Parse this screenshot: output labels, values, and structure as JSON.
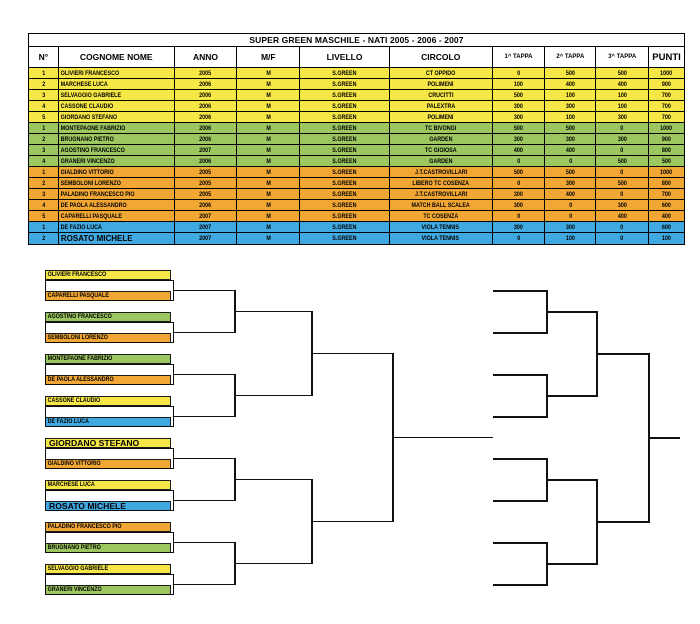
{
  "colors": {
    "yellow": "#F6E646",
    "green": "#9CC65F",
    "orange": "#F2A735",
    "blue": "#41A9E1"
  },
  "table": {
    "title": "SUPER GREEN MASCHILE - NATI 2005 - 2006 - 2007",
    "columns": [
      "N°",
      "COGNOME NOME",
      "ANNO",
      "M/F",
      "LIVELLO",
      "CIRCOLO",
      "1^ TAPPA",
      "2^ TAPPA",
      "3^ TAPPA",
      "PUNTI"
    ],
    "rows": [
      {
        "n": "1",
        "name": "OLIVIERI FRANCESCO",
        "anno": "2005",
        "mf": "M",
        "livello": "S.GREEN",
        "circolo": "CT OPPIDO",
        "t1": "0",
        "t2": "500",
        "t3": "500",
        "punti": "1000",
        "group": "yellow",
        "large": false
      },
      {
        "n": "2",
        "name": "MARCHESE LUCA",
        "anno": "2006",
        "mf": "M",
        "livello": "S.GREEN",
        "circolo": "POLIMENI",
        "t1": "100",
        "t2": "400",
        "t3": "400",
        "punti": "900",
        "group": "yellow",
        "large": false
      },
      {
        "n": "3",
        "name": "SELVAGGIO GABRIELE",
        "anno": "2006",
        "mf": "M",
        "livello": "S.GREEN",
        "circolo": "CRUCITTI",
        "t1": "500",
        "t2": "100",
        "t3": "100",
        "punti": "700",
        "group": "yellow",
        "large": false
      },
      {
        "n": "4",
        "name": "CASSONE CLAUDIO",
        "anno": "2006",
        "mf": "M",
        "livello": "S.GREEN",
        "circolo": "PALEXTRA",
        "t1": "300",
        "t2": "300",
        "t3": "100",
        "punti": "700",
        "group": "yellow",
        "large": false
      },
      {
        "n": "5",
        "name": "GIORDANO STEFANO",
        "anno": "2006",
        "mf": "M",
        "livello": "S.GREEN",
        "circolo": "POLIMENI",
        "t1": "300",
        "t2": "100",
        "t3": "300",
        "punti": "700",
        "group": "yellow",
        "large": false
      },
      {
        "n": "1",
        "name": "MONTEPAONE FABRIZIO",
        "anno": "2006",
        "mf": "M",
        "livello": "S.GREEN",
        "circolo": "TC BIVONGI",
        "t1": "500",
        "t2": "500",
        "t3": "0",
        "punti": "1000",
        "group": "green",
        "large": false
      },
      {
        "n": "2",
        "name": "BRUGNANO PIETRO",
        "anno": "2006",
        "mf": "M",
        "livello": "S.GREEN",
        "circolo": "GARDEN",
        "t1": "300",
        "t2": "300",
        "t3": "300",
        "punti": "900",
        "group": "green",
        "large": false
      },
      {
        "n": "3",
        "name": "AGOSTINO FRANCESCO",
        "anno": "2007",
        "mf": "M",
        "livello": "S.GREEN",
        "circolo": "TC GIOIOSA",
        "t1": "400",
        "t2": "400",
        "t3": "0",
        "punti": "800",
        "group": "green",
        "large": false
      },
      {
        "n": "4",
        "name": "GRANERI VINCENZO",
        "anno": "2006",
        "mf": "M",
        "livello": "S.GREEN",
        "circolo": "GARDEN",
        "t1": "0",
        "t2": "0",
        "t3": "500",
        "punti": "500",
        "group": "green",
        "large": false
      },
      {
        "n": "1",
        "name": "GIALDINO VITTORIO",
        "anno": "2005",
        "mf": "M",
        "livello": "S.GREEN",
        "circolo": "J.T.CASTROVILLARI",
        "t1": "500",
        "t2": "500",
        "t3": "0",
        "punti": "1000",
        "group": "orange",
        "large": false
      },
      {
        "n": "2",
        "name": "SEMBOLONI LORENZO",
        "anno": "2005",
        "mf": "M",
        "livello": "S.GREEN",
        "circolo": "LIBERO TC COSENZA",
        "t1": "0",
        "t2": "300",
        "t3": "500",
        "punti": "800",
        "group": "orange",
        "large": false
      },
      {
        "n": "3",
        "name": "PALADINO FRANCESCO PIO",
        "anno": "2005",
        "mf": "M",
        "livello": "S.GREEN",
        "circolo": "J.T.CASTROVILLARI",
        "t1": "300",
        "t2": "400",
        "t3": "0",
        "punti": "700",
        "group": "orange",
        "large": false
      },
      {
        "n": "4",
        "name": "DE PAOLA ALESSANDRO",
        "anno": "2006",
        "mf": "M",
        "livello": "S.GREEN",
        "circolo": "MATCH BALL SCALEA",
        "t1": "300",
        "t2": "0",
        "t3": "300",
        "punti": "600",
        "group": "orange",
        "large": false
      },
      {
        "n": "5",
        "name": "CAPARELLI PASQUALE",
        "anno": "2007",
        "mf": "M",
        "livello": "S.GREEN",
        "circolo": "TC COSENZA",
        "t1": "0",
        "t2": "0",
        "t3": "400",
        "punti": "400",
        "group": "orange",
        "large": false
      },
      {
        "n": "1",
        "name": "DE FAZIO LUCA",
        "anno": "2007",
        "mf": "M",
        "livello": "S.GREEN",
        "circolo": "VIOLA TENNIS",
        "t1": "300",
        "t2": "300",
        "t3": "0",
        "punti": "600",
        "group": "blue",
        "large": false
      },
      {
        "n": "2",
        "name": "ROSATO MICHELE",
        "anno": "2007",
        "mf": "M",
        "livello": "S.GREEN",
        "circolo": "VIOLA TENNIS",
        "t1": "0",
        "t2": "100",
        "t3": "0",
        "punti": "100",
        "group": "blue",
        "large": true
      }
    ]
  },
  "bracket": {
    "entries": [
      {
        "name": "OLIVIERI FRANCESCO",
        "group": "yellow",
        "large": false
      },
      {
        "name": "CAPARELLI PASQUALE",
        "group": "orange",
        "large": false
      },
      {
        "name": "AGOSTINO FRANCESCO",
        "group": "green",
        "large": false
      },
      {
        "name": "SEMBOLONI LORENZO",
        "group": "orange",
        "large": false
      },
      {
        "name": "MONTEPAONE FABRIZIO",
        "group": "green",
        "large": false
      },
      {
        "name": "DE PAOLA ALESSANDRO",
        "group": "orange",
        "large": false
      },
      {
        "name": "CASSONE CLAUDIO",
        "group": "yellow",
        "large": false
      },
      {
        "name": "DE FAZIO LUCA",
        "group": "blue",
        "large": false
      },
      {
        "name": "GIORDANO STEFANO",
        "group": "yellow",
        "large": true
      },
      {
        "name": "GIALDINO VITTORIO",
        "group": "orange",
        "large": false
      },
      {
        "name": "MARCHESE LUCA",
        "group": "yellow",
        "large": false
      },
      {
        "name": "ROSATO MICHELE",
        "group": "blue",
        "large": true
      },
      {
        "name": "PALADINO FRANCESCO PIO",
        "group": "orange",
        "large": false
      },
      {
        "name": "BRUGNANO PIETRO",
        "group": "green",
        "large": false
      },
      {
        "name": "SELVAGGIO GABRIELE",
        "group": "yellow",
        "large": false
      },
      {
        "name": "GRANERI VINCENZO",
        "group": "green",
        "large": false
      }
    ]
  }
}
